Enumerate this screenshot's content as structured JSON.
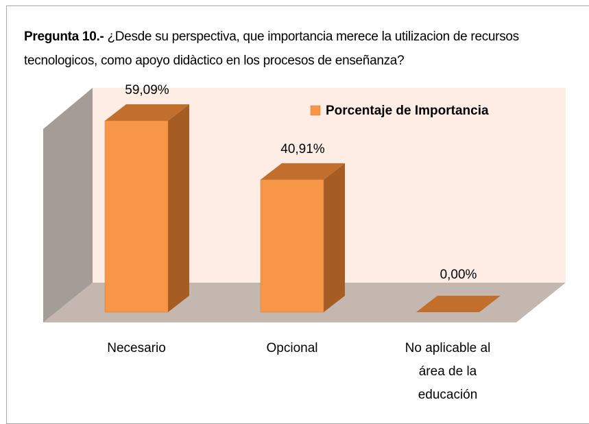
{
  "chart_data": {
    "type": "bar",
    "title": "Pregunta 10.-",
    "subtitle": "¿Desde su perspectiva, que importancia merece la utilizacion de recursos tecnologicos, como apoyo didàctico en los procesos de enseñanza?",
    "categories": [
      "Necesario",
      "Opcional",
      "No aplicable al área de la educación"
    ],
    "series": [
      {
        "name": "Porcentaje de Importancia",
        "color": "#f79646",
        "values": [
          59.09,
          40.91,
          0
        ],
        "value_labels": [
          "59,09%",
          "40,91%",
          "0,00%"
        ]
      }
    ]
  }
}
